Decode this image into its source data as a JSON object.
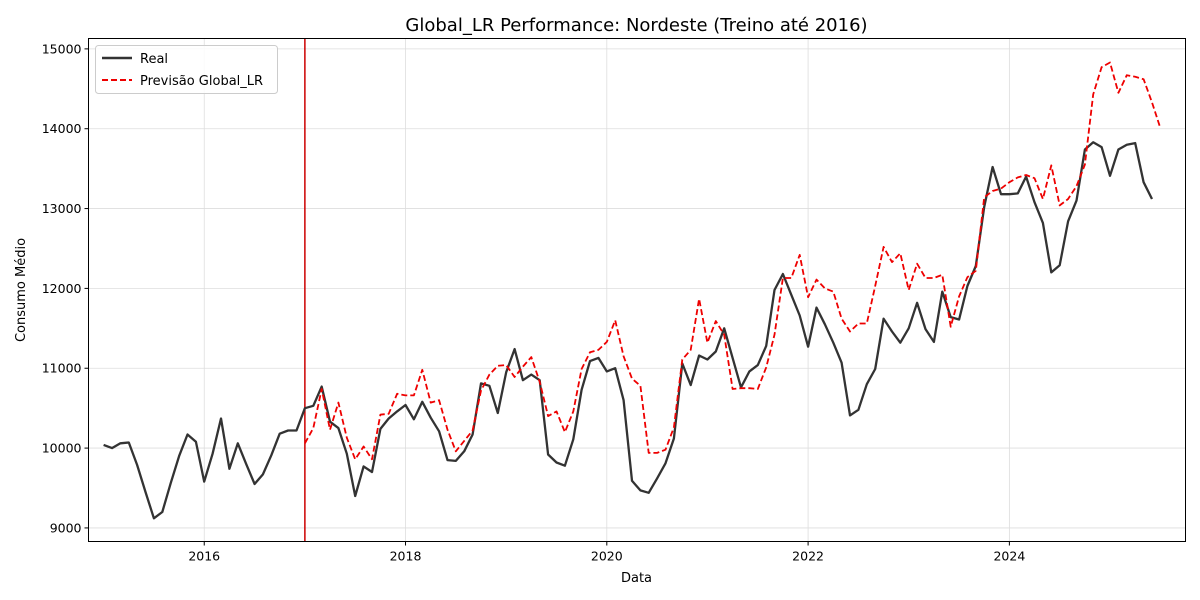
{
  "chart_data": {
    "type": "line",
    "title": "Global_LR Performance: Nordeste (Treino até 2016)",
    "xlabel": "Data",
    "ylabel": "Consumo Médio",
    "xlim": [
      2014.85,
      2025.75
    ],
    "ylim": [
      8830,
      15130
    ],
    "x_ticks": [
      2016,
      2018,
      2020,
      2022,
      2024
    ],
    "y_ticks": [
      9000,
      10000,
      11000,
      12000,
      13000,
      14000,
      15000
    ],
    "grid": true,
    "legend_position": "upper-left",
    "train_cutoff": 2017.0,
    "train_cutoff_color": "#cc0000",
    "series": [
      {
        "name": "Real",
        "color": "#333333",
        "style": "solid",
        "start": 2015.0,
        "values": [
          10040,
          10000,
          10060,
          10070,
          9790,
          9450,
          9120,
          9200,
          9560,
          9900,
          10170,
          10080,
          9580,
          9930,
          10370,
          9740,
          10060,
          9800,
          9550,
          9670,
          9910,
          10180,
          10220,
          10220,
          10500,
          10530,
          10770,
          10330,
          10250,
          9930,
          9400,
          9770,
          9700,
          10240,
          10370,
          10460,
          10540,
          10360,
          10580,
          10380,
          10210,
          9850,
          9840,
          9960,
          10170,
          10810,
          10780,
          10440,
          10950,
          11240,
          10850,
          10920,
          10850,
          9920,
          9820,
          9780,
          10110,
          10730,
          11090,
          11130,
          10960,
          11000,
          10600,
          9590,
          9470,
          9440,
          9620,
          9810,
          10120,
          11060,
          10790,
          11160,
          11110,
          11210,
          11500,
          11130,
          10760,
          10960,
          11040,
          11280,
          11980,
          12180,
          11920,
          11660,
          11270,
          11760,
          11550,
          11320,
          11070,
          10410,
          10480,
          10800,
          10990,
          11620,
          11460,
          11320,
          11500,
          11820,
          11490,
          11330,
          11960,
          11640,
          11610,
          12030,
          12280,
          13020,
          13520,
          13180,
          13180,
          13190,
          13400,
          13080,
          12820,
          12200,
          12290,
          12840,
          13100,
          13740,
          13830,
          13770,
          13410,
          13740,
          13800,
          13820,
          13330,
          13120
        ]
      },
      {
        "name": "Previsão Global_LR",
        "color": "#ee0000",
        "style": "dashed",
        "start": 2017.0,
        "values": [
          10060,
          10250,
          10740,
          10230,
          10570,
          10130,
          9860,
          10020,
          9860,
          10420,
          10430,
          10680,
          10660,
          10660,
          10980,
          10570,
          10600,
          10230,
          9960,
          10090,
          10220,
          10720,
          10920,
          11030,
          11040,
          10890,
          11020,
          11140,
          10830,
          10400,
          10460,
          10200,
          10460,
          10990,
          11200,
          11230,
          11330,
          11600,
          11150,
          10870,
          10780,
          9940,
          9940,
          9980,
          10260,
          11110,
          11230,
          11870,
          11320,
          11590,
          11420,
          10740,
          10750,
          10750,
          10740,
          11010,
          11420,
          12130,
          12130,
          12420,
          11890,
          12110,
          12000,
          11960,
          11620,
          11460,
          11560,
          11560,
          12030,
          12520,
          12330,
          12440,
          11980,
          12310,
          12130,
          12130,
          12170,
          11520,
          11900,
          12140,
          12220,
          13140,
          13220,
          13250,
          13330,
          13390,
          13420,
          13380,
          13120,
          13540,
          13040,
          13120,
          13280,
          13550,
          14430,
          14770,
          14830,
          14450,
          14670,
          14650,
          14620,
          14330,
          14010
        ]
      }
    ]
  }
}
